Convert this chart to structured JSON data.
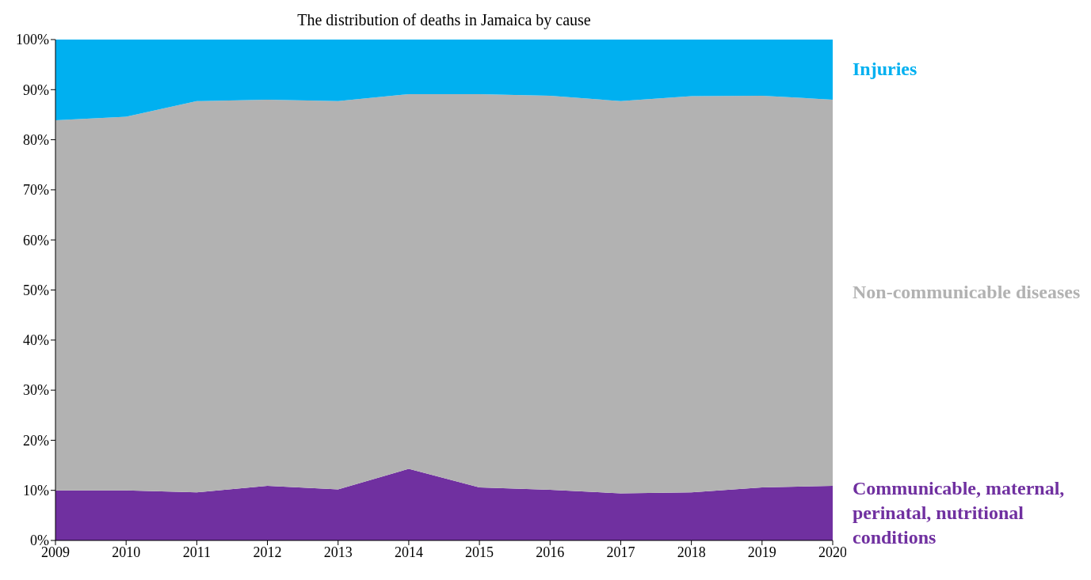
{
  "chart_data": {
    "type": "area",
    "stacked": true,
    "title": "The distribution of deaths in Jamaica by cause",
    "x": [
      2009,
      2010,
      2011,
      2012,
      2013,
      2014,
      2015,
      2016,
      2017,
      2018,
      2019,
      2020
    ],
    "xlim": [
      2009,
      2020
    ],
    "xticks": [
      2009,
      2010,
      2011,
      2012,
      2013,
      2014,
      2015,
      2016,
      2017,
      2018,
      2019,
      2020
    ],
    "ylim": [
      0,
      100
    ],
    "yticks": [
      {
        "value": 0,
        "label": "0%"
      },
      {
        "value": 10,
        "label": "10%"
      },
      {
        "value": 20,
        "label": "20%"
      },
      {
        "value": 30,
        "label": "30%"
      },
      {
        "value": 40,
        "label": "40%"
      },
      {
        "value": 50,
        "label": "50%"
      },
      {
        "value": 60,
        "label": "60%"
      },
      {
        "value": 70,
        "label": "70%"
      },
      {
        "value": 80,
        "label": "80%"
      },
      {
        "value": 90,
        "label": "90%"
      },
      {
        "value": 100,
        "label": "100%"
      }
    ],
    "series": [
      {
        "name": "Communicable, maternal, perinatal, nutritional conditions",
        "color": "#7030a0",
        "values": [
          10,
          10,
          9.6,
          10.9,
          10.2,
          14.3,
          10.6,
          10.1,
          9.4,
          9.6,
          10.6,
          10.9
        ]
      },
      {
        "name": "Non-communicable diseases",
        "color": "#b2b2b2",
        "values": [
          73.9,
          74.6,
          78.1,
          77.1,
          77.5,
          74.8,
          78.5,
          78.7,
          78.3,
          79.1,
          78.2,
          77.1
        ]
      },
      {
        "name": "Injuries",
        "color": "#00b0f0",
        "values": [
          16.1,
          15.4,
          12.3,
          12,
          12.3,
          10.9,
          10.9,
          11.2,
          12.3,
          11.3,
          11.2,
          12
        ]
      }
    ]
  }
}
